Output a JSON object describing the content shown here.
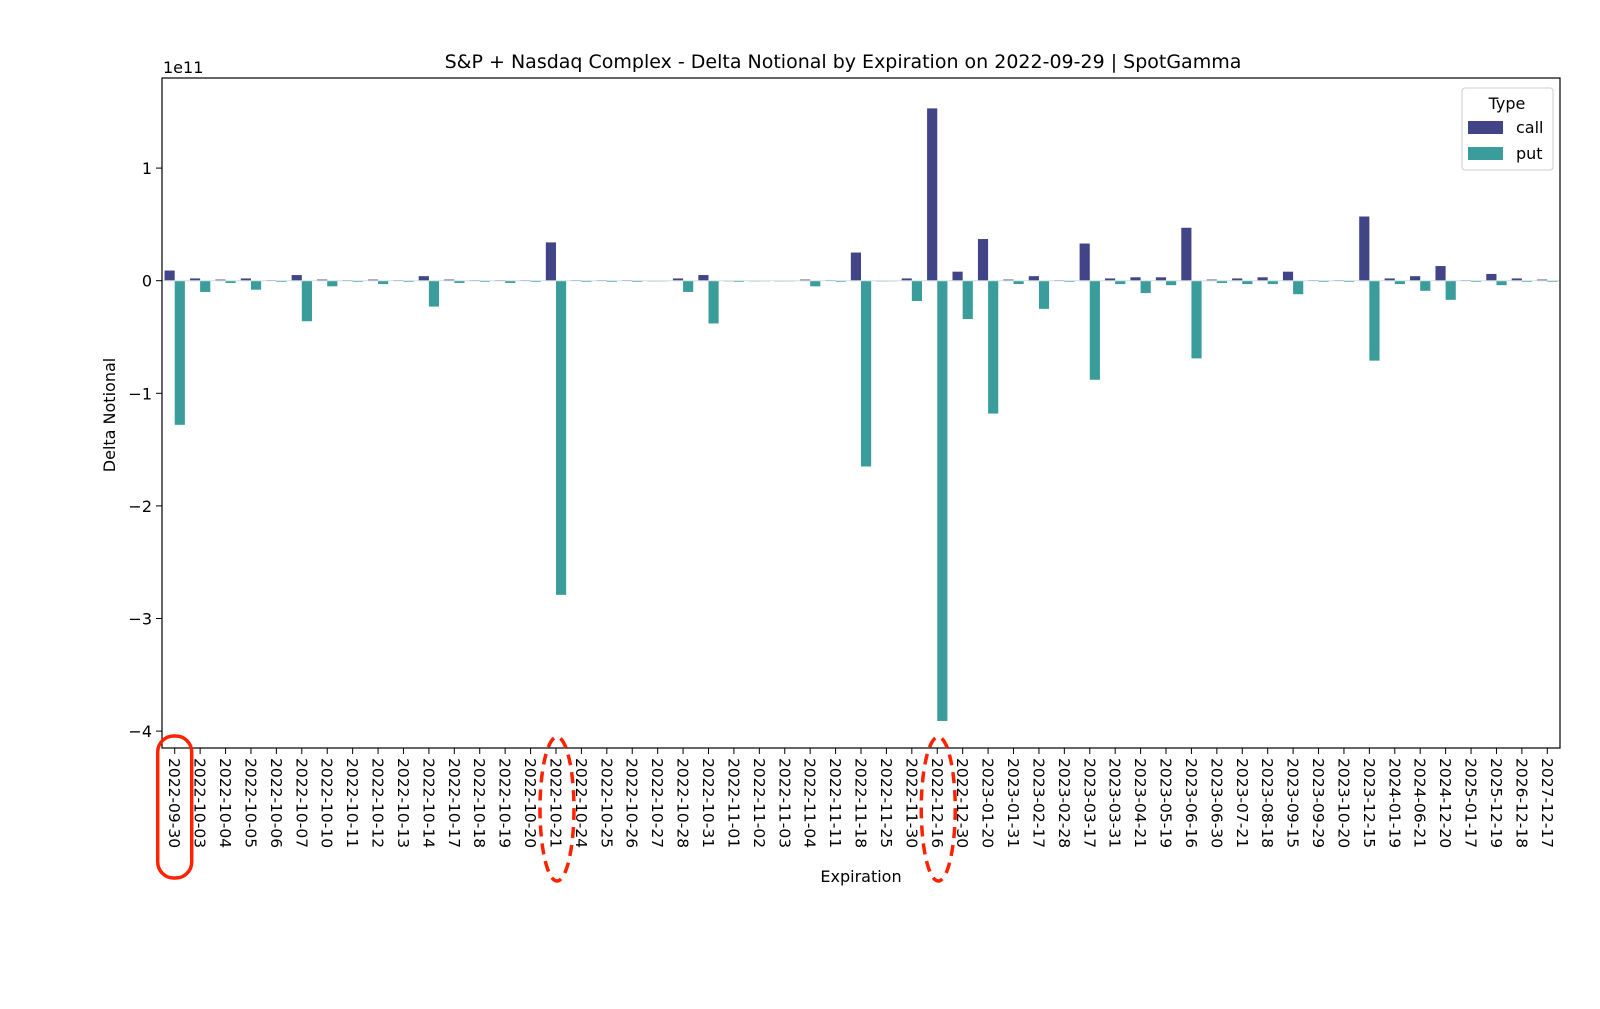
{
  "chart_data": {
    "type": "bar",
    "title": "S&P + Nasdaq Complex - Delta Notional by Expiration on 2022-09-29 | SpotGamma",
    "xlabel": "Expiration",
    "ylabel": "Delta Notional",
    "y_offset_label": "1e11",
    "ylim": [
      -4.15,
      1.8
    ],
    "y_ticks": [
      1,
      0,
      -1,
      -2,
      -3,
      -4
    ],
    "y_tick_labels": [
      "1",
      "0",
      "−1",
      "−2",
      "−3",
      "−4"
    ],
    "grid": false,
    "legend": {
      "title": "Type",
      "placement": "top-right"
    },
    "categories": [
      "2022-09-30",
      "2022-10-03",
      "2022-10-04",
      "2022-10-05",
      "2022-10-06",
      "2022-10-07",
      "2022-10-10",
      "2022-10-11",
      "2022-10-12",
      "2022-10-13",
      "2022-10-14",
      "2022-10-17",
      "2022-10-18",
      "2022-10-19",
      "2022-10-20",
      "2022-10-21",
      "2022-10-24",
      "2022-10-25",
      "2022-10-26",
      "2022-10-27",
      "2022-10-28",
      "2022-10-31",
      "2022-11-01",
      "2022-11-02",
      "2022-11-03",
      "2022-11-04",
      "2022-11-11",
      "2022-11-18",
      "2022-11-25",
      "2022-11-30",
      "2022-12-16",
      "2022-12-30",
      "2023-01-20",
      "2023-01-31",
      "2023-02-17",
      "2023-02-28",
      "2023-03-17",
      "2023-03-31",
      "2023-04-21",
      "2023-05-19",
      "2023-06-16",
      "2023-06-30",
      "2023-07-21",
      "2023-08-18",
      "2023-09-15",
      "2023-09-29",
      "2023-10-20",
      "2023-12-15",
      "2024-01-19",
      "2024-06-21",
      "2024-12-20",
      "2025-01-17",
      "2025-12-19",
      "2026-12-18",
      "2027-12-17"
    ],
    "series": [
      {
        "name": "call",
        "color": "#414487",
        "values": [
          0.09,
          0.02,
          0.01,
          0.02,
          0.005,
          0.05,
          0.01,
          0.005,
          0.01,
          0.005,
          0.04,
          0.01,
          0.005,
          0.005,
          0.005,
          0.34,
          0.005,
          0.005,
          0.005,
          0.0,
          0.02,
          0.05,
          0.0,
          0.0,
          0.0,
          0.01,
          0.005,
          0.25,
          0.0,
          0.02,
          1.53,
          0.08,
          0.37,
          0.01,
          0.04,
          0.005,
          0.33,
          0.02,
          0.03,
          0.03,
          0.47,
          0.01,
          0.02,
          0.03,
          0.08,
          0.005,
          0.005,
          0.57,
          0.02,
          0.04,
          0.13,
          0.005,
          0.06,
          0.02,
          0.01
        ]
      },
      {
        "name": "put",
        "color": "#3b9d9b",
        "values": [
          -1.28,
          -0.1,
          -0.02,
          -0.08,
          -0.01,
          -0.36,
          -0.05,
          -0.01,
          -0.03,
          -0.01,
          -0.23,
          -0.02,
          -0.01,
          -0.02,
          -0.01,
          -2.79,
          -0.01,
          -0.01,
          -0.01,
          0.0,
          -0.1,
          -0.38,
          -0.01,
          0.0,
          0.0,
          -0.05,
          -0.01,
          -1.65,
          0.0,
          -0.18,
          -3.91,
          -0.34,
          -1.18,
          -0.03,
          -0.25,
          -0.01,
          -0.88,
          -0.03,
          -0.11,
          -0.04,
          -0.69,
          -0.02,
          -0.03,
          -0.03,
          -0.12,
          -0.01,
          -0.01,
          -0.71,
          -0.03,
          -0.09,
          -0.17,
          -0.01,
          -0.04,
          -0.01,
          -0.01
        ]
      }
    ],
    "annotations": [
      {
        "category": "2022-09-30",
        "style": "solid-rounded",
        "color": "#ff2200"
      },
      {
        "category": "2022-10-21",
        "style": "dashed-ellipse",
        "color": "#ff2200"
      },
      {
        "category": "2022-12-16",
        "style": "dashed-ellipse",
        "color": "#ff2200"
      }
    ]
  }
}
